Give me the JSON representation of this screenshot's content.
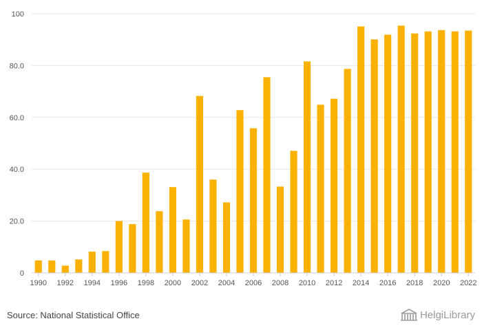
{
  "chart_data": {
    "type": "bar",
    "categories": [
      "1990",
      "1991",
      "1992",
      "1993",
      "1994",
      "1995",
      "1996",
      "1997",
      "1998",
      "1999",
      "2000",
      "2001",
      "2002",
      "2003",
      "2004",
      "2005",
      "2006",
      "2007",
      "2008",
      "2009",
      "2010",
      "2011",
      "2012",
      "2013",
      "2014",
      "2015",
      "2016",
      "2017",
      "2018",
      "2019",
      "2020",
      "2021",
      "2022"
    ],
    "values": [
      4.8,
      4.8,
      2.8,
      5.2,
      8.2,
      8.4,
      20.0,
      18.8,
      38.7,
      23.8,
      33.1,
      20.6,
      68.3,
      36.0,
      27.2,
      62.8,
      55.8,
      75.5,
      33.3,
      47.1,
      81.6,
      64.9,
      67.2,
      78.7,
      95.1,
      90.1,
      91.9,
      95.4,
      92.4,
      93.2,
      93.7,
      93.2,
      93.5
    ],
    "xtick_labels": [
      "1990",
      "1992",
      "1994",
      "1996",
      "1998",
      "2000",
      "2002",
      "2004",
      "2006",
      "2008",
      "2010",
      "2012",
      "2014",
      "2016",
      "2018",
      "2020",
      "2022"
    ],
    "yticks": [
      0,
      20,
      40,
      60,
      80,
      100
    ],
    "ytick_labels": [
      "0",
      "20.0",
      "40.0",
      "60.0",
      "80.0",
      "100"
    ],
    "ylim": [
      0,
      100
    ],
    "bar_color": "#FBB102",
    "grid": true,
    "title": "",
    "xlabel": "",
    "ylabel": ""
  },
  "footer": {
    "source": "Source: National Statistical Office",
    "brand": "HelgiLibrary",
    "brand_icon": "library-building-icon"
  }
}
